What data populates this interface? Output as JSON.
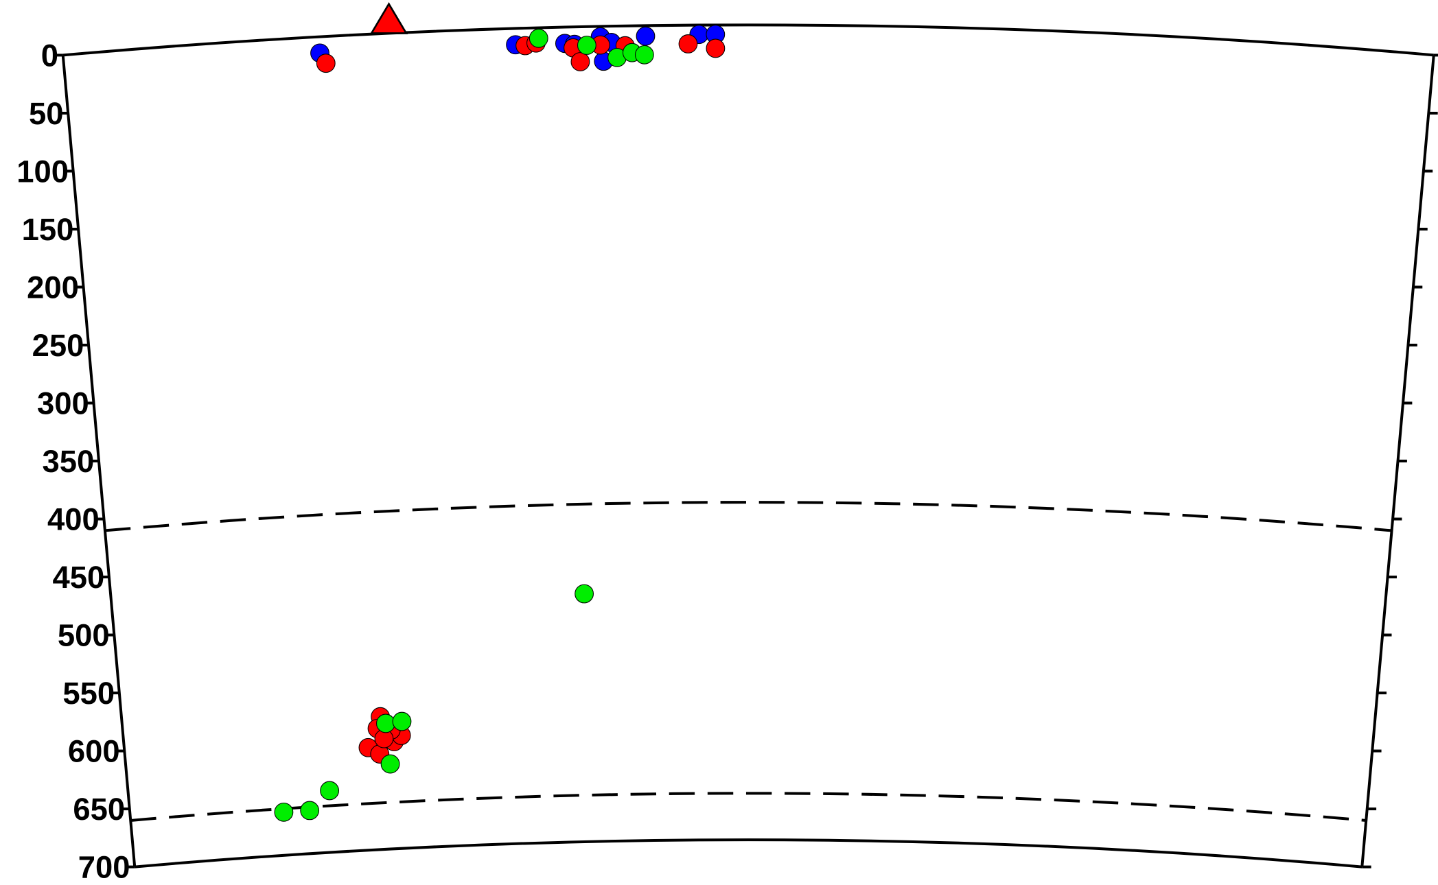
{
  "chart_data": {
    "type": "scatter",
    "xlim": [
      0,
      100
    ],
    "ylim": [
      0,
      700
    ],
    "yticks": [
      0,
      50,
      100,
      150,
      200,
      250,
      300,
      350,
      400,
      450,
      500,
      550,
      600,
      650,
      700
    ],
    "boundaries": [
      410,
      660
    ],
    "station": {
      "x": 23.8,
      "color": "#ff0000"
    },
    "series": [
      {
        "color": "#0000ff",
        "x": [
          18.7,
          33.0,
          36.6,
          37.3,
          39.2,
          40.0,
          39.4,
          42.5,
          46.4,
          47.6
        ],
        "values": [
          14,
          14,
          14,
          15,
          9,
          14,
          30,
          9,
          8,
          8
        ]
      },
      {
        "color": "#ff0000",
        "x": [
          19.1,
          33.7,
          34.5,
          37.2,
          37.7,
          39.2,
          41.0,
          45.6,
          47.6,
          20.6,
          20.3,
          19.5,
          20.4,
          21.6,
          22.2,
          21.4,
          20.8
        ],
        "values": [
          23,
          15,
          13,
          18,
          30,
          16,
          17,
          16,
          20,
          586,
          596,
          612,
          618,
          608,
          603,
          598,
          605
        ]
      },
      {
        "color": "#00ee00",
        "x": [
          34.7,
          38.2,
          40.4,
          41.5,
          42.4,
          37.1,
          21.0,
          22.3,
          21.2,
          16.2,
          14.5,
          12.4
        ],
        "values": [
          9,
          16,
          27,
          23,
          25,
          487,
          592,
          591,
          627,
          647,
          663,
          663
        ]
      }
    ]
  }
}
